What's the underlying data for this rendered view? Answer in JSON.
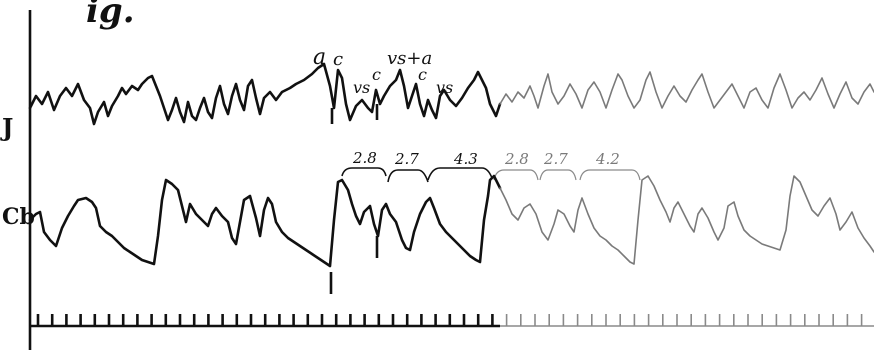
{
  "figure": {
    "title_fragment": "ig.",
    "traces": [
      {
        "id": "J",
        "label": "J"
      },
      {
        "id": "Cb",
        "label": "Cb"
      }
    ],
    "wave_labels": [
      "a",
      "c",
      "vs",
      "c",
      "vs+a",
      "c",
      "vs"
    ],
    "interval_labels": [
      {
        "text": "2.8",
        "style": "dark"
      },
      {
        "text": "2.7",
        "style": "dark"
      },
      {
        "text": "4.3",
        "style": "dark"
      },
      {
        "text": "2.8",
        "style": "light"
      },
      {
        "text": "2.7",
        "style": "light"
      },
      {
        "text": "4.2",
        "style": "light"
      }
    ]
  },
  "colors": {
    "ink": "#111111",
    "faded_ink": "#7a7a7a",
    "paper": "#ffffff"
  }
}
